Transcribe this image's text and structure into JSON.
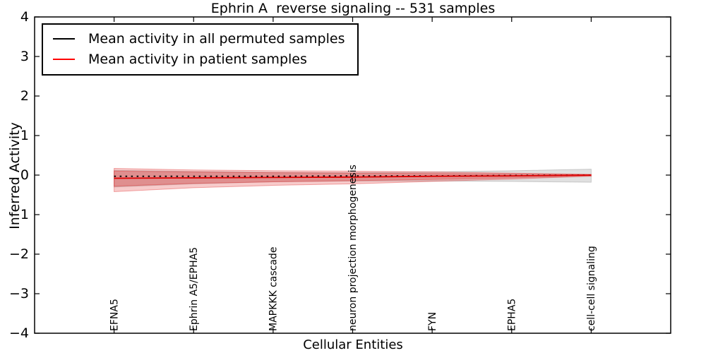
{
  "window": {
    "title": "Ephrin A  reverse signaling -- 531 samples"
  },
  "legend": {
    "items": [
      {
        "label": "Mean activity in all permuted samples",
        "color": "#000000"
      },
      {
        "label": "Mean activity in patient samples",
        "color": "#ff0000"
      }
    ]
  },
  "chart_data": {
    "type": "line",
    "title": "Ephrin A  reverse signaling -- 531 samples",
    "xlabel": "Cellular Entities",
    "ylabel": "Inferred Activity",
    "ylim": [
      -4,
      4
    ],
    "yticks": [
      4,
      3,
      2,
      1,
      0,
      -1,
      -2,
      -3,
      -4
    ],
    "grid": false,
    "legend_position": "upper left",
    "categories": [
      "EFNA5",
      "Ephrin A5/EPHA5",
      "MAPKKK cascade",
      "neuron projection morphogenesis",
      "FYN",
      "EPHA5",
      "cell-cell signaling"
    ],
    "series": [
      {
        "name": "Mean activity in all permuted samples",
        "color": "#000000",
        "style": "dotted",
        "values": [
          -0.03,
          -0.03,
          -0.03,
          -0.02,
          -0.02,
          -0.01,
          0.0
        ]
      },
      {
        "name": "Mean activity in patient samples",
        "color": "#dd0000",
        "style": "solid",
        "values": [
          -0.08,
          -0.07,
          -0.06,
          -0.05,
          -0.03,
          -0.02,
          0.0
        ]
      }
    ],
    "bands": [
      {
        "name": "permuted-std-band",
        "color": "#999999",
        "opacity": 0.3,
        "upper": [
          0.12,
          0.09,
          0.07,
          0.06,
          0.08,
          0.11,
          0.15
        ],
        "lower": [
          -0.3,
          -0.22,
          -0.17,
          -0.15,
          -0.15,
          -0.16,
          -0.18
        ]
      },
      {
        "name": "patient-std-band-outer",
        "color": "#e03030",
        "opacity": 0.25,
        "upper": [
          0.17,
          0.13,
          0.11,
          0.1,
          0.08,
          0.05,
          0.02
        ],
        "lower": [
          -0.42,
          -0.32,
          -0.26,
          -0.22,
          -0.16,
          -0.1,
          -0.03
        ]
      },
      {
        "name": "patient-std-band-inner",
        "color": "#e03030",
        "opacity": 0.28,
        "upper": [
          0.1,
          0.08,
          0.06,
          0.05,
          0.04,
          0.03,
          0.01
        ],
        "lower": [
          -0.28,
          -0.21,
          -0.17,
          -0.14,
          -0.11,
          -0.07,
          -0.02
        ]
      }
    ]
  }
}
